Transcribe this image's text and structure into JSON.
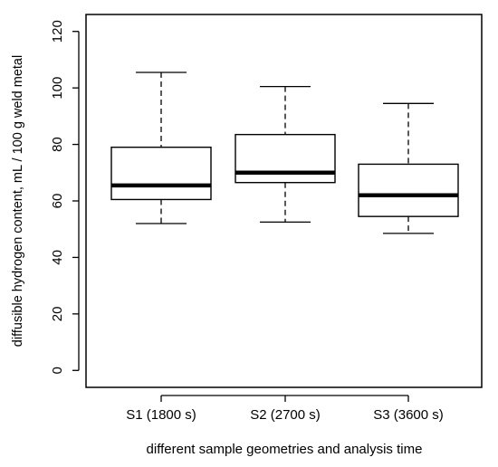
{
  "chart_data": {
    "type": "boxplot",
    "xlabel": "different sample geometries and analysis time",
    "ylabel": "diffusible hydrogen content, mL / 100 g weld metal",
    "ylim": [
      -6,
      126
    ],
    "yticks": [
      0,
      20,
      40,
      60,
      80,
      100,
      120
    ],
    "grid": false,
    "categories": [
      "S1 (1800 s)",
      "S2 (2700 s)",
      "S3 (3600 s)"
    ],
    "boxes": [
      {
        "whisker_low": 52,
        "q1": 60.5,
        "median": 65.5,
        "q3": 79,
        "whisker_high": 105.5
      },
      {
        "whisker_low": 52.5,
        "q1": 66.5,
        "median": 70,
        "q3": 83.5,
        "whisker_high": 100.5
      },
      {
        "whisker_low": 48.5,
        "q1": 54.5,
        "median": 62,
        "q3": 73,
        "whisker_high": 94.5
      }
    ]
  }
}
